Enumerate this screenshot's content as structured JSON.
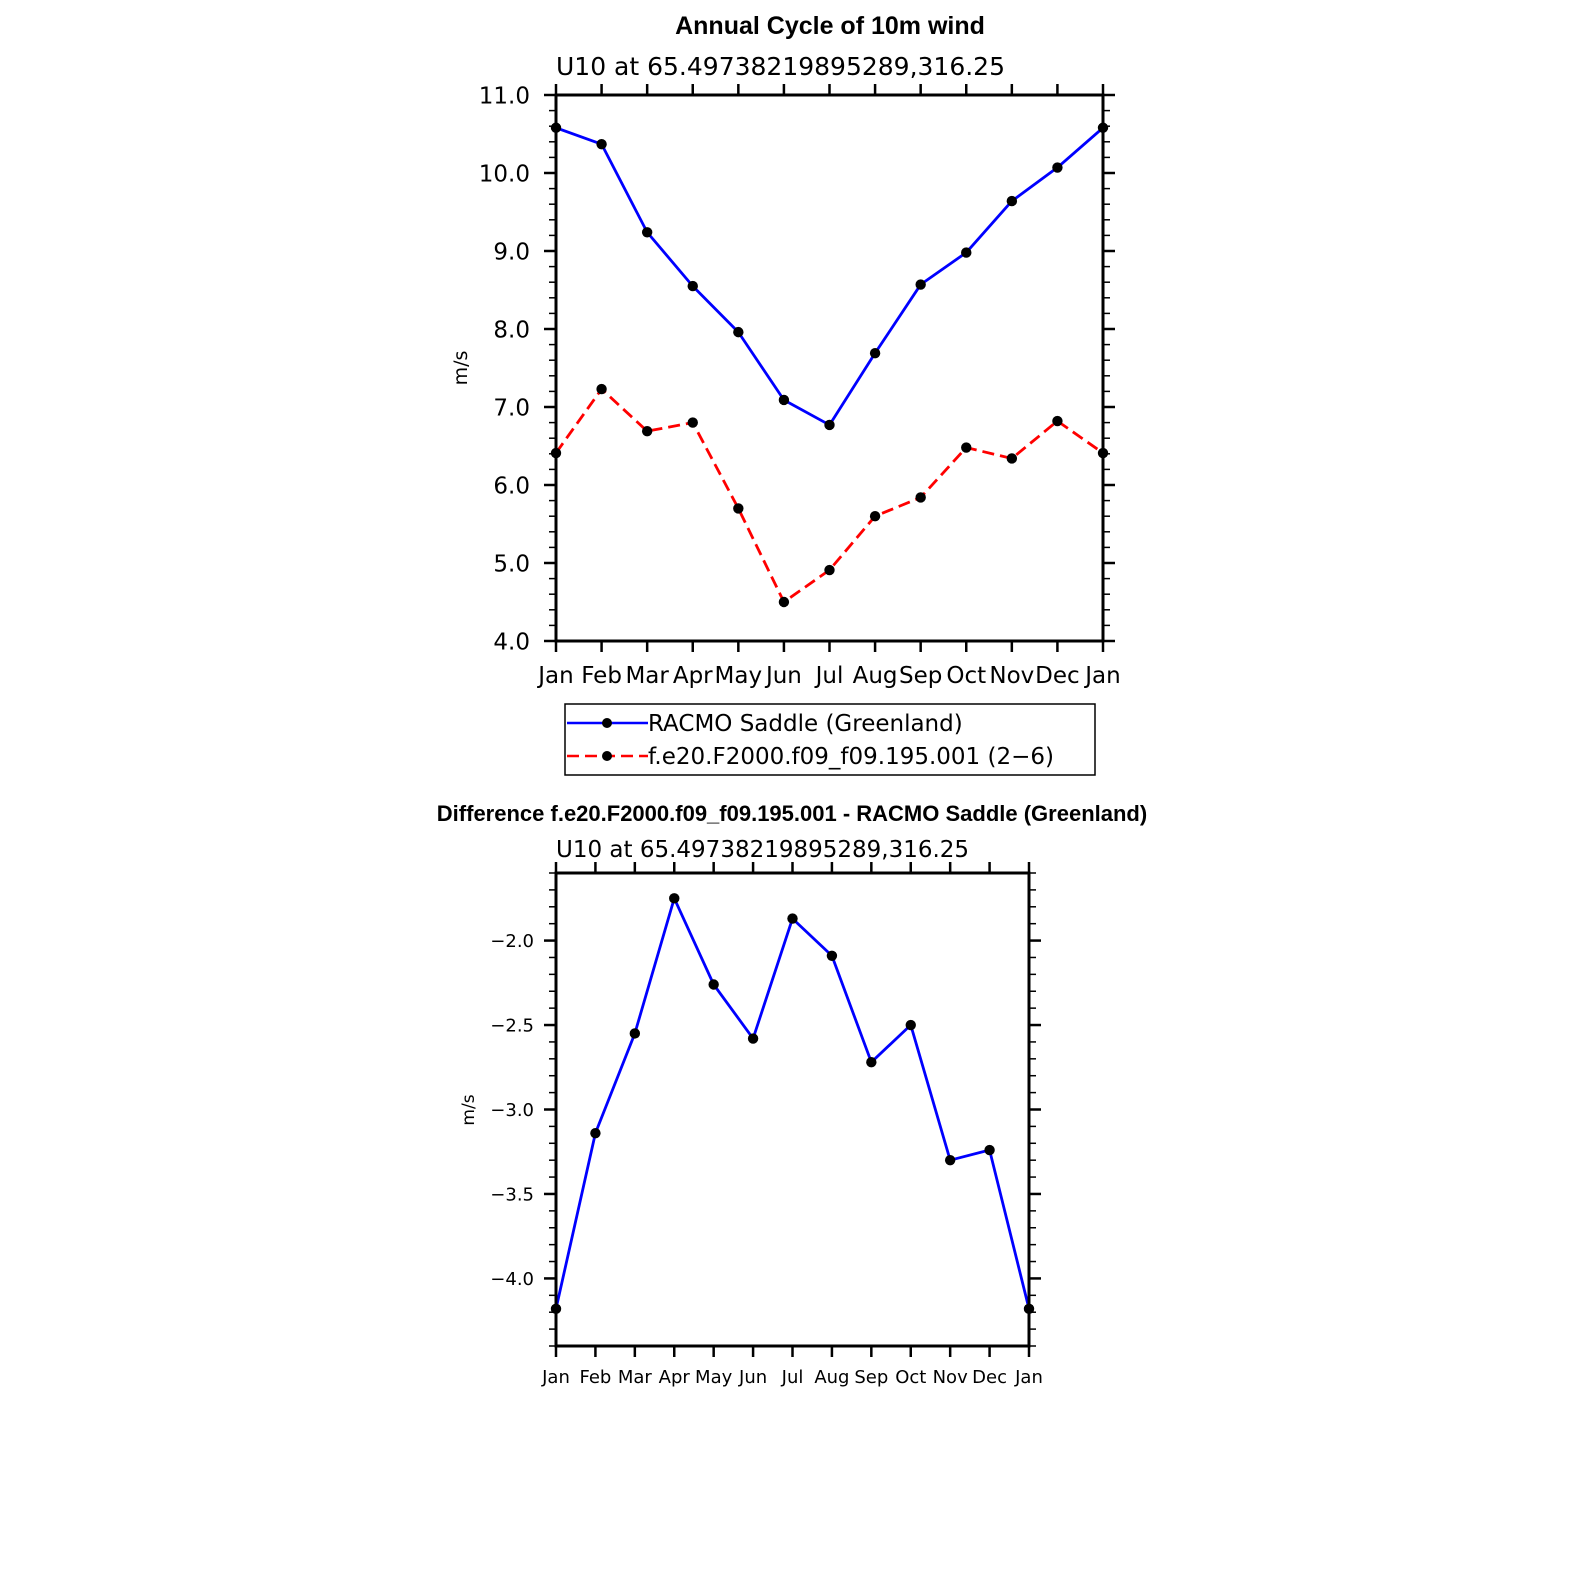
{
  "chart_data": [
    {
      "type": "line",
      "title": "Annual Cycle of 10m wind",
      "subtitle": "U10  at  65.49738219895289,316.25",
      "ylabel": "m/s",
      "xlabel": "",
      "categories": [
        "Jan",
        "Feb",
        "Mar",
        "Apr",
        "May",
        "Jun",
        "Jul",
        "Aug",
        "Sep",
        "Oct",
        "Nov",
        "Dec",
        "Jan"
      ],
      "ylim": [
        4.0,
        11.0
      ],
      "yticks": [
        "4.0",
        "5.0",
        "6.0",
        "7.0",
        "8.0",
        "9.0",
        "10.0",
        "11.0"
      ],
      "ytick_values": [
        4.0,
        5.0,
        6.0,
        7.0,
        8.0,
        9.0,
        10.0,
        11.0
      ],
      "series": [
        {
          "name": "RACMO Saddle (Greenland)",
          "color": "#0000ff",
          "dash": "solid",
          "values": [
            10.58,
            10.37,
            9.24,
            8.55,
            7.96,
            7.09,
            6.77,
            7.69,
            8.57,
            8.98,
            9.64,
            10.07,
            10.58
          ]
        },
        {
          "name": "f.e20.F2000.f09_f09.195.001 (2−6)",
          "color": "#ff0000",
          "dash": "dashed",
          "values": [
            6.41,
            7.23,
            6.69,
            6.8,
            5.7,
            4.5,
            4.91,
            5.6,
            5.84,
            6.48,
            6.34,
            6.82,
            6.41
          ]
        }
      ],
      "legend": [
        "RACMO Saddle (Greenland)",
        "f.e20.F2000.f09_f09.195.001 (2−6)"
      ]
    },
    {
      "type": "line",
      "title": "Difference f.e20.F2000.f09_f09.195.001 - RACMO Saddle (Greenland)",
      "subtitle": "U10  at  65.49738219895289,316.25",
      "ylabel": "m/s",
      "xlabel": "",
      "categories": [
        "Jan",
        "Feb",
        "Mar",
        "Apr",
        "May",
        "Jun",
        "Jul",
        "Aug",
        "Sep",
        "Oct",
        "Nov",
        "Dec",
        "Jan"
      ],
      "ylim": [
        -4.4,
        -1.6
      ],
      "yticks": [
        "−4.0",
        "−3.5",
        "−3.0",
        "−2.5",
        "−2.0"
      ],
      "ytick_values": [
        -4.0,
        -3.5,
        -3.0,
        -2.5,
        -2.0
      ],
      "series": [
        {
          "name": "Difference",
          "color": "#0000ff",
          "dash": "solid",
          "values": [
            -4.18,
            -3.14,
            -2.55,
            -1.75,
            -2.26,
            -2.58,
            -1.87,
            -2.09,
            -2.72,
            -2.5,
            -3.3,
            -3.24,
            -4.18
          ]
        }
      ]
    }
  ]
}
